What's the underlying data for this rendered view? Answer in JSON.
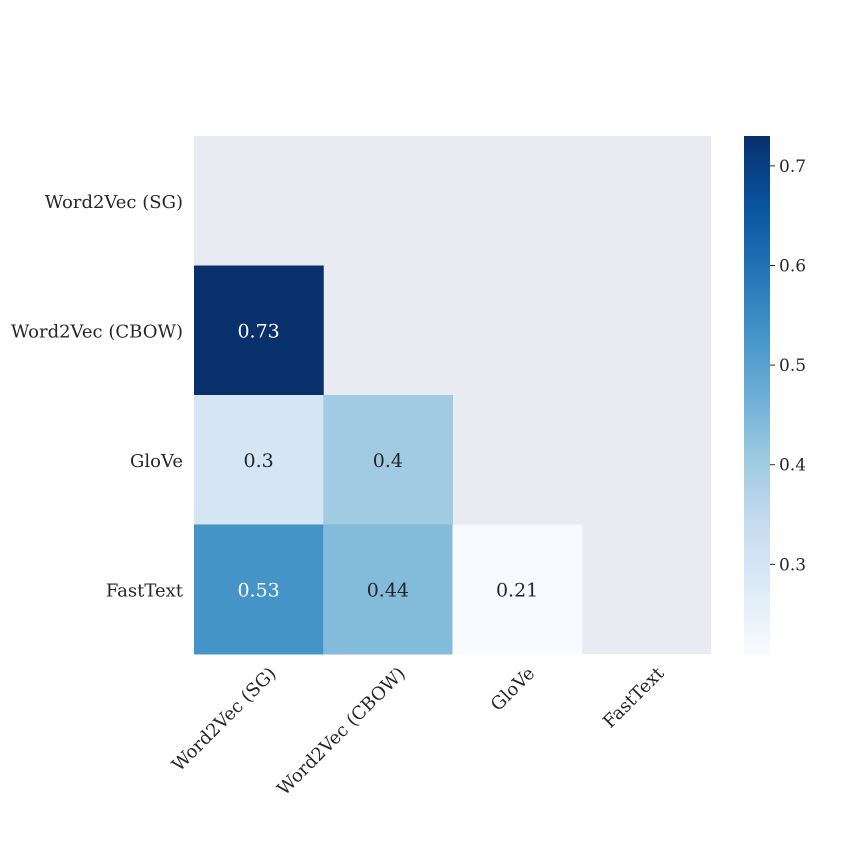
{
  "chart_data": {
    "type": "heatmap",
    "title": "",
    "xlabel": "",
    "ylabel": "",
    "x_categories": [
      "Word2Vec (SG)",
      "Word2Vec (CBOW)",
      "GloVe",
      "FastText"
    ],
    "y_categories": [
      "Word2Vec (SG)",
      "Word2Vec (CBOW)",
      "GloVe",
      "FastText"
    ],
    "mask": "upper-triangle-including-diagonal",
    "values": [
      [
        null,
        null,
        null,
        null
      ],
      [
        0.73,
        null,
        null,
        null
      ],
      [
        0.3,
        0.4,
        null,
        null
      ],
      [
        0.53,
        0.44,
        0.21,
        null
      ]
    ],
    "cell_labels": [
      [
        null,
        null,
        null,
        null
      ],
      [
        "0.73",
        null,
        null,
        null
      ],
      [
        "0.3",
        "0.4",
        null,
        null
      ],
      [
        "0.53",
        "0.44",
        "0.21",
        null
      ]
    ],
    "colormap": "Blues",
    "vmin": 0.21,
    "vmax": 0.73,
    "colorbar": {
      "ticks": [
        0.3,
        0.4,
        0.5,
        0.6,
        0.7
      ],
      "tick_labels": [
        "0.3",
        "0.4",
        "0.5",
        "0.6",
        "0.7"
      ]
    },
    "masked_color": "#eaeaf2",
    "grid": false,
    "legend": "colorbar-right"
  }
}
